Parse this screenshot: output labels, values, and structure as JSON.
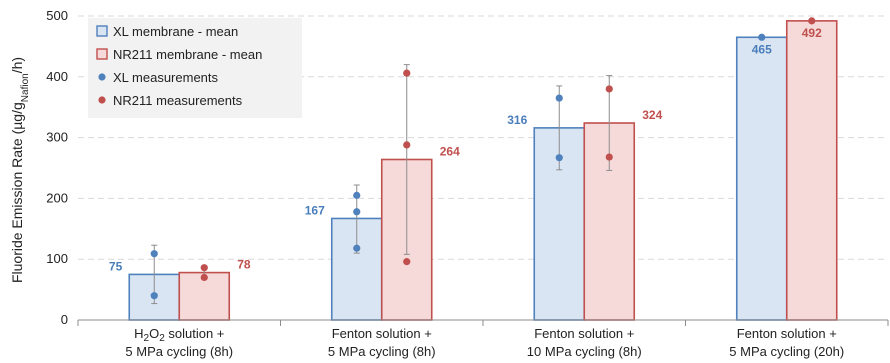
{
  "chart_data": {
    "type": "bar",
    "ylabel_main": "Fluoride Emission Rate (µg/g",
    "ylabel_sub": "Nafion",
    "ylabel_end": "/h)",
    "ylim": [
      0,
      500
    ],
    "yticks": [
      0,
      100,
      200,
      300,
      400,
      500
    ],
    "grid": true,
    "legend_position": "top-left",
    "categories": [
      {
        "line1_pre": "H",
        "line1_sub1": "2",
        "line1_mid": "O",
        "line1_sub2": "2",
        "line1_post": " solution +",
        "line2": "5 MPa cycling (8h)"
      },
      {
        "line1_pre": "Fenton solution +",
        "line1_sub1": "",
        "line1_mid": "",
        "line1_sub2": "",
        "line1_post": "",
        "line2": "5 MPa cycling (8h)"
      },
      {
        "line1_pre": "Fenton solution +",
        "line1_sub1": "",
        "line1_mid": "",
        "line1_sub2": "",
        "line1_post": "",
        "line2": "10 MPa cycling (8h)"
      },
      {
        "line1_pre": "Fenton solution +",
        "line1_sub1": "",
        "line1_mid": "",
        "line1_sub2": "",
        "line1_post": "",
        "line2": "5 MPa cycling (20h)"
      }
    ],
    "series": [
      {
        "name": "XL membrane - mean",
        "measurements_name": "XL measurements",
        "fill": "#dae5f3",
        "stroke": "#4f81bd",
        "label_color": "#4a7ebb",
        "values": [
          75,
          167,
          316,
          465
        ],
        "labels": [
          "75",
          "167",
          "316",
          "465"
        ],
        "error_low": [
          27,
          110,
          247,
          465
        ],
        "error_high": [
          123,
          222,
          385,
          465
        ],
        "measurements": [
          [
            109,
            40
          ],
          [
            205,
            178,
            118
          ],
          [
            365,
            267
          ],
          [
            465
          ]
        ]
      },
      {
        "name": "NR211 membrane - mean",
        "measurements_name": "NR211 measurements",
        "fill": "#f6dada",
        "stroke": "#c0504d",
        "label_color": "#c0504d",
        "values": [
          78,
          264,
          324,
          492
        ],
        "labels": [
          "78",
          "264",
          "324",
          "492"
        ],
        "error_low": [
          68,
          108,
          246,
          492
        ],
        "error_high": [
          88,
          420,
          402,
          492
        ],
        "measurements": [
          [
            86,
            70
          ],
          [
            406,
            288,
            96
          ],
          [
            380,
            268
          ],
          [
            492
          ]
        ]
      }
    ]
  }
}
